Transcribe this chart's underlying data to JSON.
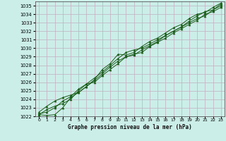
{
  "xlabel": "Graphe pression niveau de la mer (hPa)",
  "background_color": "#cceee8",
  "grid_color": "#c0b0c0",
  "line_color": "#1a5c1a",
  "ylim": [
    1022,
    1035.5
  ],
  "xlim": [
    -0.5,
    23.5
  ],
  "yticks": [
    1022,
    1023,
    1024,
    1025,
    1026,
    1027,
    1028,
    1029,
    1030,
    1031,
    1032,
    1033,
    1034,
    1035
  ],
  "xticks": [
    0,
    1,
    2,
    3,
    4,
    5,
    6,
    7,
    8,
    9,
    10,
    11,
    12,
    13,
    14,
    15,
    16,
    17,
    18,
    19,
    20,
    21,
    22,
    23
  ],
  "xtick_labels": [
    "0",
    "1",
    "2",
    "3",
    "4",
    "5",
    "6",
    "7",
    "8",
    "9",
    "10",
    "11",
    "12",
    "13",
    "14",
    "15",
    "16",
    "17",
    "18",
    "19",
    "20",
    "21",
    "22",
    "23"
  ],
  "series": [
    [
      1022.2,
      1022.1,
      1022.2,
      1023.0,
      1024.2,
      1024.8,
      1025.5,
      1026.3,
      1027.5,
      1028.2,
      1029.3,
      1029.2,
      1029.5,
      1030.2,
      1030.8,
      1031.2,
      1031.8,
      1032.4,
      1032.8,
      1033.5,
      1034.0,
      1034.2,
      1034.8,
      1035.3
    ],
    [
      1022.2,
      1022.8,
      1023.2,
      1023.5,
      1024.0,
      1025.0,
      1025.8,
      1026.5,
      1027.2,
      1028.0,
      1028.8,
      1029.5,
      1029.8,
      1030.0,
      1030.5,
      1031.0,
      1031.5,
      1032.0,
      1032.5,
      1033.2,
      1033.8,
      1034.3,
      1034.5,
      1035.2
    ],
    [
      1022.5,
      1023.2,
      1023.8,
      1024.2,
      1024.5,
      1024.8,
      1025.5,
      1026.2,
      1027.0,
      1027.8,
      1028.5,
      1029.0,
      1029.2,
      1029.8,
      1030.3,
      1030.8,
      1031.5,
      1032.0,
      1032.5,
      1033.0,
      1033.5,
      1033.8,
      1034.5,
      1035.0
    ],
    [
      1022.3,
      1022.5,
      1023.0,
      1023.8,
      1024.3,
      1025.2,
      1025.8,
      1026.0,
      1026.8,
      1027.5,
      1028.2,
      1029.0,
      1029.3,
      1029.5,
      1030.2,
      1030.7,
      1031.2,
      1031.8,
      1032.3,
      1032.8,
      1033.3,
      1034.0,
      1034.3,
      1034.8
    ]
  ]
}
